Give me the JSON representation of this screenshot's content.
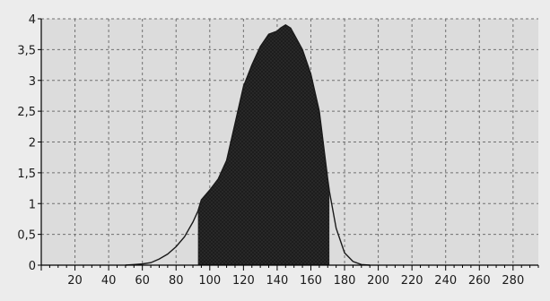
{
  "chart_data": {
    "type": "area",
    "title": "",
    "xlabel": "",
    "ylabel": "",
    "xlim": [
      0,
      295
    ],
    "ylim": [
      0,
      4
    ],
    "x_ticks": [
      20,
      40,
      60,
      80,
      100,
      120,
      140,
      160,
      180,
      200,
      220,
      240,
      260,
      280
    ],
    "x_tick_labels": [
      "20",
      "40",
      "60",
      "80",
      "100",
      "120",
      "140",
      "160",
      "180",
      "200",
      "220",
      "240",
      "260",
      "280"
    ],
    "y_ticks": [
      0,
      0.5,
      1,
      1.5,
      2,
      2.5,
      3,
      3.5,
      4
    ],
    "y_tick_labels": [
      "0",
      "0,5",
      "1",
      "1,5",
      "2",
      "2,5",
      "3",
      "3,5",
      "4"
    ],
    "grid": true,
    "filled_range": [
      93,
      171
    ],
    "series": [
      {
        "x": [
          50,
          55,
          60,
          65,
          70,
          75,
          80,
          85,
          90,
          93,
          95,
          100,
          105,
          110,
          115,
          120,
          125,
          130,
          135,
          140,
          142,
          145,
          148,
          150,
          155,
          160,
          165,
          170,
          171,
          175,
          180,
          185,
          190,
          195
        ],
        "y": [
          0,
          0.01,
          0.02,
          0.04,
          0.1,
          0.18,
          0.3,
          0.46,
          0.7,
          0.88,
          1.06,
          1.22,
          1.4,
          1.7,
          2.3,
          2.9,
          3.25,
          3.55,
          3.75,
          3.8,
          3.85,
          3.9,
          3.85,
          3.75,
          3.5,
          3.1,
          2.5,
          1.4,
          1.2,
          0.6,
          0.2,
          0.06,
          0.01,
          0
        ]
      }
    ],
    "colors": {
      "fill": "#2a2a2a",
      "line": "#1a1a1a",
      "grid": "#707070",
      "plot_bg": "#dcdcdc"
    }
  }
}
